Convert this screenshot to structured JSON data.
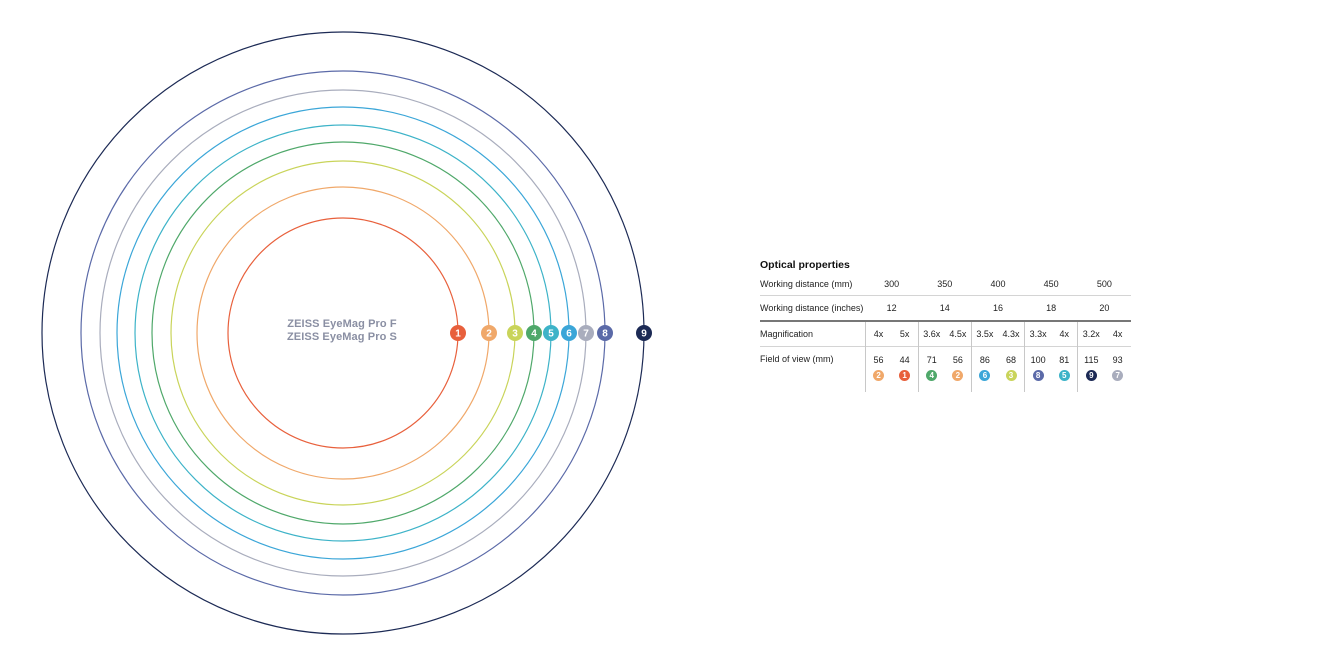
{
  "diagram": {
    "products": [
      "ZEISS EyeMag Pro F",
      "ZEISS EyeMag Pro S"
    ],
    "circles": [
      {
        "id": "1",
        "color": "#e8603c"
      },
      {
        "id": "2",
        "color": "#f0a86a"
      },
      {
        "id": "3",
        "color": "#c9d45a"
      },
      {
        "id": "4",
        "color": "#4fa86a"
      },
      {
        "id": "5",
        "color": "#3db3c8"
      },
      {
        "id": "6",
        "color": "#3ba6d8"
      },
      {
        "id": "7",
        "color": "#a9adbd"
      },
      {
        "id": "8",
        "color": "#5b6aa8"
      },
      {
        "id": "9",
        "color": "#1c2a55"
      }
    ]
  },
  "optics": {
    "title": "Optical properties",
    "rows": {
      "wd_mm_label": "Working distance (mm)",
      "wd_in_label": "Working distance (inches)",
      "mag_label": "Magnification",
      "fov_label": "Field of view (mm)"
    },
    "groups": [
      {
        "wd_mm": "300",
        "wd_in": "12",
        "mags": [
          "4x",
          "5x"
        ],
        "fov": [
          "56",
          "44"
        ],
        "ids": [
          "2",
          "1"
        ]
      },
      {
        "wd_mm": "350",
        "wd_in": "14",
        "mags": [
          "3.6x",
          "4.5x"
        ],
        "fov": [
          "71",
          "56"
        ],
        "ids": [
          "4",
          "2"
        ]
      },
      {
        "wd_mm": "400",
        "wd_in": "16",
        "mags": [
          "3.5x",
          "4.3x"
        ],
        "fov": [
          "86",
          "68"
        ],
        "ids": [
          "6",
          "3"
        ]
      },
      {
        "wd_mm": "450",
        "wd_in": "18",
        "mags": [
          "3.3x",
          "4x"
        ],
        "fov": [
          "100",
          "81"
        ],
        "ids": [
          "8",
          "5"
        ]
      },
      {
        "wd_mm": "500",
        "wd_in": "20",
        "mags": [
          "3.2x",
          "4x"
        ],
        "fov": [
          "115",
          "93"
        ],
        "ids": [
          "9",
          "7"
        ]
      }
    ]
  }
}
